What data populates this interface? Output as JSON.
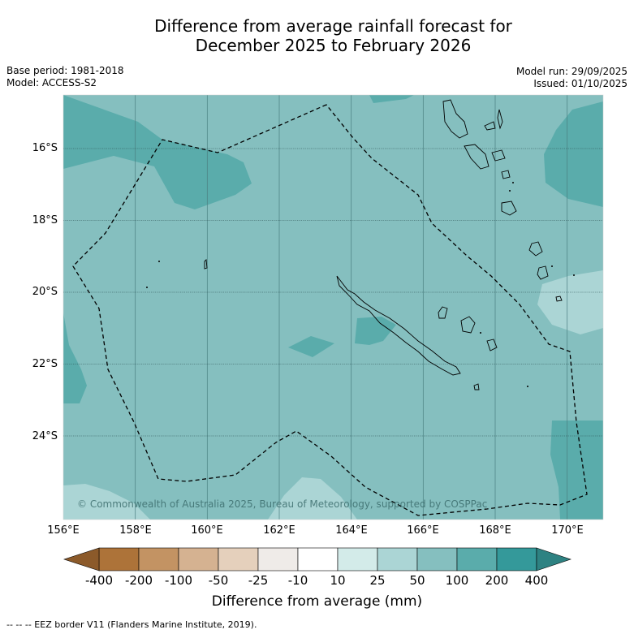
{
  "title": {
    "line1": "Difference from average rainfall forecast for",
    "line2": "December 2025 to February 2026"
  },
  "meta_left": {
    "base_period": "Base period: 1981-2018",
    "model": "Model: ACCESS-S2"
  },
  "meta_right": {
    "model_run": "Model run: 29/09/2025",
    "issued": "Issued: 01/10/2025"
  },
  "map": {
    "copyright": "© Commonwealth of Australia 2025, Bureau of Meteorology, supported by COSPPac",
    "lat_labels": [
      "16°S",
      "18°S",
      "20°S",
      "22°S",
      "24°S"
    ],
    "lon_labels": [
      "156°E",
      "158°E",
      "160°E",
      "162°E",
      "164°E",
      "166°E",
      "168°E",
      "170°E"
    ]
  },
  "colorbar": {
    "ticks": [
      "-400",
      "-200",
      "-100",
      "-50",
      "-25",
      "-10",
      "10",
      "25",
      "50",
      "100",
      "200",
      "400"
    ],
    "colors": [
      "#ad7339",
      "#c39363",
      "#d5b291",
      "#e5d0bc",
      "#efebe8",
      "#ffffff",
      "#d3ebe9",
      "#abd5d5",
      "#85bfbf",
      "#5aacab",
      "#34999a"
    ],
    "end_low": "#8c5a2a",
    "end_high": "#2e8282",
    "label": "Difference from average (mm)"
  },
  "footer": "--  --  -- EEZ border V11 (Flanders Marine Institute, 2019)."
}
